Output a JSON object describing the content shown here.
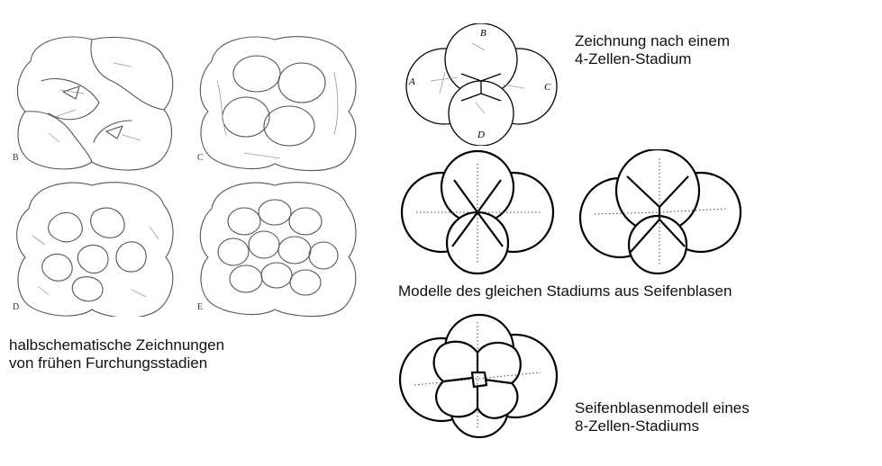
{
  "left": {
    "tiles": [
      {
        "letter": "B"
      },
      {
        "letter": "C"
      },
      {
        "letter": "D"
      },
      {
        "letter": "E"
      }
    ],
    "caption_line1": "halbschematische Zeichnungen",
    "caption_line2": "von frühen Furchungsstadien"
  },
  "drawing4": {
    "cell_labels": [
      "A",
      "B",
      "C",
      "D"
    ],
    "caption_line1": "Zeichnung nach einem",
    "caption_line2": "4-Zellen-Stadium"
  },
  "models": {
    "caption": "Modelle des gleichen Stadiums aus Seifenblasen"
  },
  "model8": {
    "caption_line1": "Seifenblasenmodell eines",
    "caption_line2": "8-Zellen-Stadiums"
  }
}
